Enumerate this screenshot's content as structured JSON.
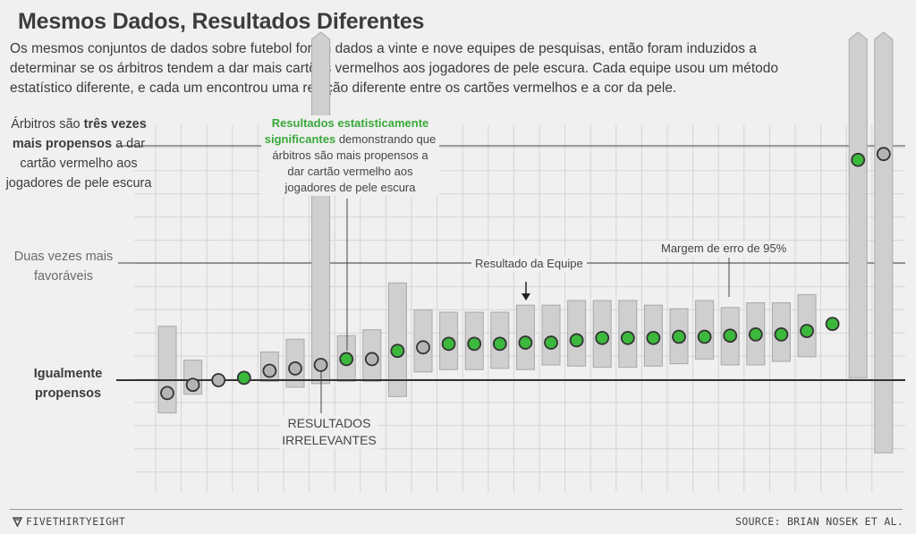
{
  "header": {
    "title": "Mesmos Dados, Resultados Diferentes",
    "subtitle": "Os mesmos conjuntos de dados sobre futebol foram dados a vinte e nove equipes de pesquisas, então foram induzidos a determinar se os árbitros tendem a dar mais cartões vermelhos aos jogadores de pele escura. Cada equipe usou um método estatístico diferente, e cada um encontrou uma relação diferente entre os cartões vermelhos e a cor da pele."
  },
  "labels": {
    "three_times_pre": "Árbitros são ",
    "three_times_bold": "três vezes mais propensos",
    "three_times_post": " a dar cartão vermelho aos jogadores de pele escura",
    "two_times": "Duas vezes mais favoráveis",
    "equal": "Igualmente propensos",
    "significant_green": "Resultados estatisticamente significantes",
    "significant_rest": " demonstrando que árbitros são mais propensos a dar cartão vermelho aos jogadores de pele escura",
    "irrelevant": "RESULTADOS IRRELEVANTES",
    "team_result": "Resultado da Equipe",
    "margin": "Margem de erro de 95%"
  },
  "footer": {
    "brand": "FIVETHIRTYEIGHT",
    "source": "SOURCE: BRIAN NOSEK ET AL."
  },
  "colors": {
    "significant": "#3cb83c",
    "irrelevant": "#b4b4b4",
    "bar": "#cfcfcf",
    "grid": "#d4d4d4"
  },
  "chart_data": {
    "type": "scatter",
    "title": "Mesmos Dados, Resultados Diferentes",
    "x": [
      1,
      2,
      3,
      4,
      5,
      6,
      7,
      8,
      9,
      10,
      11,
      12,
      13,
      14,
      15,
      16,
      17,
      18,
      19,
      20,
      21,
      22,
      23,
      24,
      25,
      26,
      27,
      28,
      29
    ],
    "series": [
      {
        "estimate": [
          0.89,
          0.96,
          1.0,
          1.02,
          1.08,
          1.1,
          1.13,
          1.18,
          1.18,
          1.25,
          1.28,
          1.31,
          1.31,
          1.31,
          1.32,
          1.32,
          1.34,
          1.36,
          1.36,
          1.36,
          1.37,
          1.37,
          1.38,
          1.39,
          1.39,
          1.42,
          1.48,
          2.88,
          2.93
        ],
        "ci_low": [
          0.72,
          0.88,
          null,
          null,
          0.99,
          0.94,
          0.97,
          0.99,
          0.99,
          0.86,
          1.07,
          1.09,
          1.09,
          1.1,
          1.09,
          1.13,
          1.12,
          1.11,
          1.11,
          1.12,
          1.14,
          1.18,
          1.13,
          1.13,
          1.16,
          1.2,
          null,
          1.02,
          0.38
        ],
        "ci_high": [
          1.46,
          1.17,
          null,
          null,
          1.24,
          1.35,
          null,
          1.38,
          1.43,
          1.83,
          1.6,
          1.58,
          1.58,
          1.58,
          1.64,
          1.64,
          1.68,
          1.68,
          1.68,
          1.64,
          1.61,
          1.68,
          1.62,
          1.66,
          1.66,
          1.73,
          null,
          null,
          null
        ],
        "significant": [
          false,
          false,
          false,
          true,
          false,
          false,
          false,
          true,
          false,
          true,
          false,
          true,
          true,
          true,
          true,
          true,
          true,
          true,
          true,
          true,
          true,
          true,
          true,
          true,
          true,
          true,
          true,
          true,
          false
        ]
      }
    ],
    "reference_lines": [
      {
        "value": 1,
        "label": "Igualmente propensos"
      },
      {
        "value": 2,
        "label": "Duas vezes mais favoráveis"
      },
      {
        "value": 3,
        "label": "Árbitros são três vezes mais propensos a dar cartão vermelho aos jogadores de pele escura"
      }
    ],
    "grid": true
  }
}
